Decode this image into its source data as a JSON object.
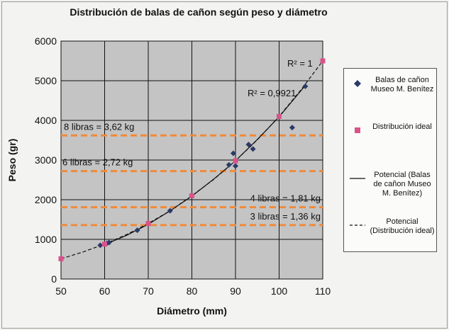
{
  "chart_data": {
    "type": "scatter",
    "title": "Distribución de balas de cañon según peso y diámetro",
    "xlabel": "Diámetro (mm)",
    "ylabel": "Peso (gr)",
    "xlim": [
      50,
      110
    ],
    "ylim": [
      0,
      6000
    ],
    "x_ticks": [
      "50",
      "60",
      "70",
      "80",
      "90",
      "100",
      "110"
    ],
    "y_ticks": [
      "0",
      "1000",
      "2000",
      "3000",
      "4000",
      "5000",
      "6000"
    ],
    "grid": true,
    "legend_position": "right",
    "series": [
      {
        "name": "Balas de cañon Museo M. Benítez",
        "marker": "diamond",
        "color": "#2b3a67",
        "points": [
          [
            59,
            850
          ],
          [
            60.5,
            900
          ],
          [
            61,
            920
          ],
          [
            67.5,
            1230
          ],
          [
            75,
            1720
          ],
          [
            80,
            2110
          ],
          [
            88.5,
            2880
          ],
          [
            89.5,
            3170
          ],
          [
            90,
            2850
          ],
          [
            93,
            3390
          ],
          [
            94,
            3280
          ],
          [
            103,
            3820
          ],
          [
            106,
            4860
          ]
        ]
      },
      {
        "name": "Distribución ideal",
        "marker": "square",
        "color": "#d9538a",
        "points": [
          [
            50,
            510
          ],
          [
            60,
            880
          ],
          [
            70,
            1400
          ],
          [
            80,
            2100
          ],
          [
            90,
            2980
          ],
          [
            100,
            4100
          ],
          [
            110,
            5500
          ]
        ]
      }
    ],
    "trendlines": [
      {
        "name": "Potencial (Balas de cañon Museo M. Benítez)",
        "style": "solid",
        "r2_label": "R² = 0,9921",
        "points": [
          [
            59,
            820
          ],
          [
            65,
            1100
          ],
          [
            70,
            1380
          ],
          [
            75,
            1720
          ],
          [
            80,
            2090
          ],
          [
            85,
            2520
          ],
          [
            90,
            2980
          ],
          [
            95,
            3520
          ],
          [
            100,
            4090
          ],
          [
            106,
            4880
          ]
        ]
      },
      {
        "name": "Potencial (Distribución ideal)",
        "style": "dashed",
        "r2_label": "R² = 1",
        "points": [
          [
            50,
            510
          ],
          [
            55,
            680
          ],
          [
            60,
            880
          ],
          [
            65,
            1120
          ],
          [
            70,
            1400
          ],
          [
            75,
            1720
          ],
          [
            80,
            2100
          ],
          [
            85,
            2510
          ],
          [
            90,
            2980
          ],
          [
            95,
            3510
          ],
          [
            100,
            4100
          ],
          [
            105,
            4770
          ],
          [
            110,
            5500
          ]
        ]
      }
    ],
    "reference_lines": [
      {
        "y": 3620,
        "label": "8 libras = 3,62 kg"
      },
      {
        "y": 2720,
        "label": "6 libras = 2,72 kg"
      },
      {
        "y": 1810,
        "label": "4 libras = 1,81 kg"
      },
      {
        "y": 1360,
        "label": "3 libras = 1,36 kg"
      }
    ],
    "colors": {
      "plot_bg": "#c4c4c4",
      "grid": "#111111",
      "reference_line": "#f08a3a"
    }
  },
  "legend": {
    "items": [
      {
        "label": "Balas de cañon Museo M. Benítez"
      },
      {
        "label": "Distribución ideal"
      },
      {
        "label": "Potencial (Balas de cañon Museo M. Benítez)"
      },
      {
        "label": "Potencial (Distribución ideal)"
      }
    ]
  }
}
